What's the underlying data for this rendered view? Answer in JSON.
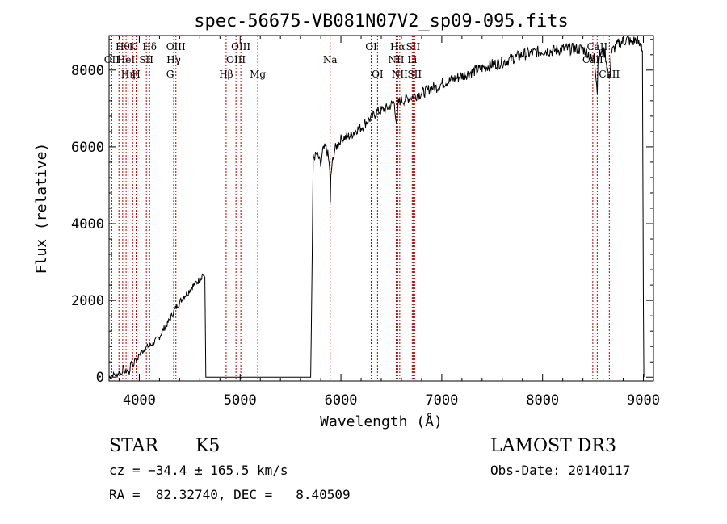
{
  "chart_data": {
    "type": "line",
    "title": "spec-56675-VB081N07V2_sp09-095.fits",
    "xlabel": "Wavelength (Å)",
    "ylabel": "Flux (relative)",
    "xlim": [
      3700,
      9100
    ],
    "ylim": [
      -100,
      8900
    ],
    "xticks": [
      4000,
      5000,
      6000,
      7000,
      8000,
      9000
    ],
    "yticks": [
      0,
      2000,
      4000,
      6000,
      8000
    ],
    "series": [
      {
        "name": "flux",
        "x": [
          3700,
          3750,
          3780,
          3800,
          3820,
          3840,
          3860,
          3880,
          3900,
          3920,
          3940,
          3960,
          3980,
          4000,
          4040,
          4080,
          4120,
          4160,
          4200,
          4240,
          4280,
          4320,
          4360,
          4400,
          4440,
          4480,
          4520,
          4560,
          4600,
          4630,
          4650,
          4660,
          4680,
          4700,
          5000,
          5300,
          5600,
          5700,
          5715,
          5725,
          5740,
          5760,
          5780,
          5800,
          5820,
          5850,
          5870,
          5890,
          5895,
          5900,
          5910,
          5940,
          5980,
          6000,
          6050,
          6100,
          6150,
          6200,
          6250,
          6300,
          6350,
          6400,
          6450,
          6500,
          6530,
          6555,
          6563,
          6570,
          6600,
          6650,
          6700,
          6750,
          6800,
          6850,
          6900,
          6950,
          7000,
          7100,
          7200,
          7300,
          7400,
          7500,
          7600,
          7700,
          7800,
          7900,
          8000,
          8100,
          8200,
          8300,
          8400,
          8450,
          8498,
          8510,
          8542,
          8550,
          8580,
          8620,
          8662,
          8680,
          8720,
          8760,
          8800,
          8850,
          8880,
          8900,
          8930,
          8960,
          8980,
          8990,
          9000,
          9005
        ],
        "values": [
          0,
          80,
          50,
          150,
          60,
          250,
          120,
          200,
          100,
          420,
          300,
          500,
          430,
          600,
          700,
          800,
          850,
          950,
          1050,
          1250,
          1400,
          1600,
          1800,
          1950,
          2100,
          2200,
          2350,
          2450,
          2550,
          2700,
          2600,
          0,
          0,
          0,
          0,
          0,
          0,
          0,
          3200,
          5700,
          5750,
          5800,
          5700,
          5500,
          5900,
          6000,
          5800,
          5400,
          4500,
          5200,
          5500,
          5950,
          6100,
          6200,
          6250,
          6300,
          6450,
          6500,
          6650,
          6750,
          6900,
          6950,
          7000,
          7100,
          7150,
          6500,
          6900,
          7150,
          7200,
          7250,
          7300,
          7350,
          7400,
          7450,
          7550,
          7550,
          7650,
          7750,
          7850,
          7950,
          8050,
          8150,
          8200,
          8300,
          8400,
          8450,
          8500,
          8500,
          8550,
          8550,
          8550,
          8450,
          8200,
          8500,
          7450,
          8300,
          8450,
          8450,
          7700,
          8450,
          8600,
          8700,
          8750,
          8800,
          8700,
          8750,
          8800,
          8650,
          8700,
          8500,
          1900,
          0
        ]
      }
    ],
    "lines": [
      {
        "wave": 3727,
        "label": "OII",
        "row": 1
      },
      {
        "wave": 3798,
        "label": "",
        "row": 0
      },
      {
        "wave": 3835,
        "label": "Hθ",
        "row": 0
      },
      {
        "wave": 3869,
        "label": "HeI",
        "row": 1
      },
      {
        "wave": 3889,
        "label": "Hη",
        "row": 2
      },
      {
        "wave": 3934,
        "label": "K",
        "row": 0
      },
      {
        "wave": 3969,
        "label": "H",
        "row": 2
      },
      {
        "wave": 4070,
        "label": "SII",
        "row": 1
      },
      {
        "wave": 4102,
        "label": "Hδ",
        "row": 0
      },
      {
        "wave": 4305,
        "label": "G",
        "row": 2
      },
      {
        "wave": 4341,
        "label": "Hγ",
        "row": 1
      },
      {
        "wave": 4363,
        "label": "OIII",
        "row": 0
      },
      {
        "wave": 4861,
        "label": "Hβ",
        "row": 2
      },
      {
        "wave": 4959,
        "label": "OIII",
        "row": 1
      },
      {
        "wave": 5007,
        "label": "OIII",
        "row": 0
      },
      {
        "wave": 5175,
        "label": "Mg",
        "row": 2
      },
      {
        "wave": 5893,
        "label": "Na",
        "row": 1
      },
      {
        "wave": 6300,
        "label": "OI",
        "row": 0
      },
      {
        "wave": 6363,
        "label": "OI",
        "row": 2
      },
      {
        "wave": 6548,
        "label": "NII",
        "row": 1
      },
      {
        "wave": 6563,
        "label": "Hα",
        "row": 0
      },
      {
        "wave": 6583,
        "label": "NII",
        "row": 2
      },
      {
        "wave": 6716,
        "label": "SII",
        "row": 0
      },
      {
        "wave": 6707,
        "label": "Li",
        "row": 1
      },
      {
        "wave": 6731,
        "label": "SII",
        "row": 2
      },
      {
        "wave": 8498,
        "label": "CaII",
        "row": 1
      },
      {
        "wave": 8542,
        "label": "CaII",
        "row": 0
      },
      {
        "wave": 8662,
        "label": "CaII",
        "row": 2
      }
    ]
  },
  "info": {
    "object_class": "STAR",
    "subclass": "K5",
    "survey": "LAMOST DR3",
    "cz": "cz = −34.4 ± 165.5 km/s",
    "obs_date": "Obs-Date: 20140117",
    "coords": "RA =  82.32740, DEC =   8.40509"
  }
}
